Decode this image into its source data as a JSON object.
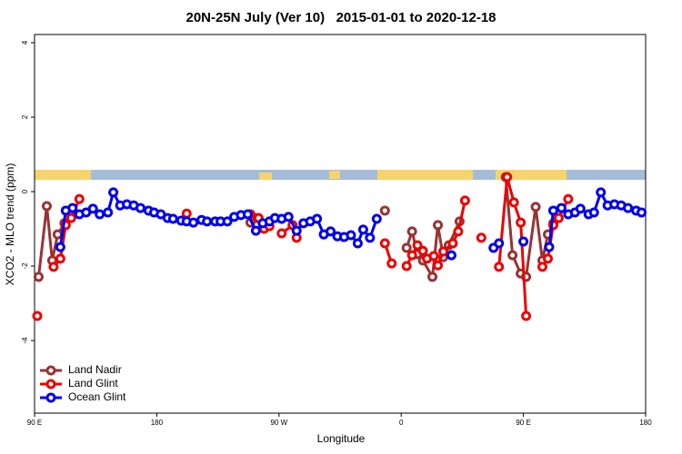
{
  "chart_data": {
    "type": "line",
    "title": "20N-25N July (Ver 10)   2015-01-01 to 2020-12-18",
    "xlabel": "Longitude",
    "ylabel": "XCO2 - MLO trend (ppm)",
    "xlim": [
      90,
      540
    ],
    "xticks": [
      {
        "value": 90,
        "label": "90 E"
      },
      {
        "value": 180,
        "label": "180"
      },
      {
        "value": 270,
        "label": "90 W"
      },
      {
        "value": 360,
        "label": "0"
      },
      {
        "value": 450,
        "label": "90 E"
      },
      {
        "value": 540,
        "label": "180"
      }
    ],
    "ylim": [
      -5.95,
      4.22
    ],
    "yticks": [
      -4,
      -2,
      0,
      2,
      4
    ],
    "legend": "bottom-left",
    "series": [
      {
        "name": "Land Nadir",
        "color": "#993333",
        "x": [
          93,
          99,
          103,
          107,
          112,
          null,
          249,
          254,
          null,
          348,
          null,
          364,
          368,
          372,
          376,
          383,
          387,
          391,
          395,
          403,
          null,
          437,
          442,
          448,
          452,
          459,
          464,
          468,
          472
        ],
        "values": [
          -2.29,
          -0.39,
          -1.85,
          -1.15,
          -0.85,
          null,
          -0.83,
          -0.71,
          null,
          -0.51,
          null,
          -1.51,
          -1.07,
          -1.68,
          -1.85,
          -2.29,
          -0.9,
          -1.76,
          -1.44,
          -0.8,
          null,
          0.39,
          -1.71,
          -2.2,
          -2.29,
          -0.41,
          -1.85,
          -1.15,
          -0.85
        ]
      },
      {
        "name": "Land Glint",
        "color": "#ee0000",
        "x": [
          92,
          null,
          104,
          109,
          113,
          117,
          123,
          null,
          202,
          null,
          249,
          255,
          259,
          263,
          null,
          272,
          280,
          283,
          null,
          348,
          353,
          null,
          364,
          368,
          372,
          376,
          379,
          384,
          387,
          391,
          398,
          402,
          407,
          null,
          419,
          null,
          432,
          438,
          443,
          448,
          452,
          null,
          464,
          468,
          472,
          476,
          483
        ],
        "values": [
          -3.34,
          null,
          -2.02,
          -1.8,
          -0.9,
          -0.71,
          -0.2,
          null,
          -0.59,
          null,
          -0.61,
          -0.71,
          -1.0,
          -0.93,
          null,
          -1.12,
          -0.9,
          -1.24,
          null,
          -1.39,
          -1.93,
          null,
          -2.0,
          -1.71,
          -1.44,
          -1.59,
          -1.8,
          -1.73,
          -1.98,
          -1.61,
          -1.39,
          -1.07,
          -0.24,
          null,
          -1.24,
          null,
          -2.02,
          0.39,
          -0.29,
          -0.83,
          -3.34,
          null,
          -2.02,
          -1.8,
          -0.9,
          -0.71,
          -0.2
        ]
      },
      {
        "name": "Ocean Glint",
        "color": "#0000ee",
        "x": [
          109,
          113,
          118,
          123,
          128,
          133,
          138,
          144,
          148,
          153,
          158,
          163,
          168,
          174,
          178,
          183,
          188,
          192,
          198,
          202,
          207,
          213,
          217,
          223,
          227,
          232,
          237,
          242,
          247,
          253,
          258,
          263,
          267,
          272,
          277,
          283,
          288,
          293,
          298,
          303,
          308,
          313,
          318,
          323,
          328,
          332,
          337,
          342,
          null,
          397,
          null,
          428,
          432,
          null,
          450,
          null,
          469,
          472,
          478,
          483,
          488,
          492,
          498,
          502,
          507,
          512,
          517,
          522,
          527,
          533,
          537
        ],
        "values": [
          -1.49,
          -0.51,
          -0.44,
          -0.61,
          -0.56,
          -0.46,
          -0.61,
          -0.56,
          -0.02,
          -0.37,
          -0.34,
          -0.37,
          -0.44,
          -0.51,
          -0.56,
          -0.61,
          -0.71,
          -0.73,
          -0.78,
          -0.8,
          -0.83,
          -0.76,
          -0.8,
          -0.8,
          -0.8,
          -0.8,
          -0.68,
          -0.63,
          -0.61,
          -1.05,
          -0.85,
          -0.8,
          -0.71,
          -0.73,
          -0.68,
          -1.05,
          -0.85,
          -0.8,
          -0.73,
          -1.15,
          -1.07,
          -1.2,
          -1.22,
          -1.17,
          -1.39,
          -1.02,
          -1.24,
          -0.73,
          null,
          -1.71,
          null,
          -1.51,
          -1.39,
          null,
          -1.34,
          null,
          -1.49,
          -0.51,
          -0.44,
          -0.61,
          -0.56,
          -0.46,
          -0.61,
          -0.56,
          -0.02,
          -0.37,
          -0.34,
          -0.37,
          -0.44,
          -0.51,
          -0.56
        ]
      }
    ]
  }
}
